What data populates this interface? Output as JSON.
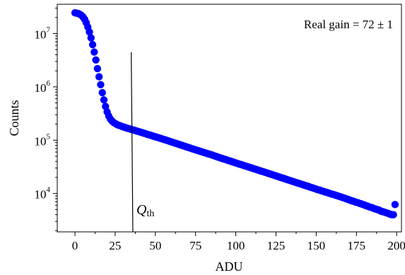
{
  "chart_data": {
    "type": "scatter",
    "xlabel": "ADU",
    "ylabel": "Counts",
    "x_ticks": [
      "0",
      "25",
      "50",
      "75",
      "100",
      "125",
      "150",
      "175",
      "200"
    ],
    "y_tick_mantissa": "10",
    "y_tick_exponents": [
      "4",
      "5",
      "6",
      "7"
    ],
    "xlim": [
      -11,
      203
    ],
    "ylim_log10": [
      3.28,
      7.55
    ],
    "annotation": "Real gain = 72 ± 1",
    "threshold_label": "Q",
    "threshold_label_subscript": "th",
    "threshold_line": {
      "x": [
        35,
        36
      ],
      "log10_counts": [
        6.65,
        3.28
      ]
    },
    "series": [
      {
        "marker_color": "#0000ff",
        "points": [
          [
            0,
            24500000.0
          ],
          [
            1,
            24200000.0
          ],
          [
            2,
            23800000.0
          ],
          [
            3,
            23000000.0
          ],
          [
            4,
            22000000.0
          ],
          [
            5,
            20500000.0
          ],
          [
            6,
            18500000.0
          ],
          [
            7,
            16000000.0
          ],
          [
            8,
            13300000.0
          ],
          [
            9,
            10700000.0
          ],
          [
            10,
            8300000.0
          ],
          [
            11,
            6200000.0
          ],
          [
            12,
            4500000.0
          ],
          [
            13,
            3200000.0
          ],
          [
            14,
            2200000.0
          ],
          [
            15,
            1550000.0
          ],
          [
            16,
            1100000.0
          ],
          [
            17,
            780000.0
          ],
          [
            18,
            570000.0
          ],
          [
            19,
            430000.0
          ],
          [
            20,
            340000.0
          ],
          [
            21,
            285000.0
          ],
          [
            22,
            250000.0
          ],
          [
            23,
            230000.0
          ],
          [
            24,
            215000.0
          ],
          [
            25,
            206000.0
          ],
          [
            26,
            198000.0
          ],
          [
            27,
            192000.0
          ],
          [
            28,
            187000.0
          ],
          [
            29,
            182000.0
          ],
          [
            30,
            178000.0
          ],
          [
            31,
            174000.0
          ],
          [
            32,
            170000.0
          ],
          [
            33,
            166000.0
          ],
          [
            34,
            163000.0
          ],
          [
            35,
            159000.0
          ],
          [
            36,
            156000.0
          ],
          [
            37,
            153000.0
          ],
          [
            38,
            150000.0
          ],
          [
            39,
            147000.0
          ],
          [
            40,
            144000.0
          ],
          [
            41,
            141000.0
          ],
          [
            42,
            138000.0
          ],
          [
            43,
            135000.0
          ],
          [
            44,
            132000.0
          ],
          [
            45,
            129000.0
          ],
          [
            46,
            126000.0
          ],
          [
            47,
            124000.0
          ],
          [
            48,
            121000.0
          ],
          [
            49,
            118000.0
          ],
          [
            50,
            116000.0
          ],
          [
            55,
            104000.0
          ],
          [
            60,
            93000.0
          ],
          [
            65,
            83000.0
          ],
          [
            70,
            74000.0
          ],
          [
            75,
            66000.0
          ],
          [
            80,
            59000.0
          ],
          [
            85,
            53000.0
          ],
          [
            90,
            47000.0
          ],
          [
            95,
            42000.0
          ],
          [
            100,
            37500.0
          ],
          [
            105,
            33500.0
          ],
          [
            110,
            30000.0
          ],
          [
            115,
            26800.0
          ],
          [
            120,
            24000.0
          ],
          [
            125,
            21400.0
          ],
          [
            130,
            19100.0
          ],
          [
            135,
            17000.0
          ],
          [
            140,
            15200.0
          ],
          [
            145,
            13600.0
          ],
          [
            150,
            12100.0
          ],
          [
            151,
            11800.0
          ],
          [
            152,
            11600.0
          ],
          [
            153,
            11300.0
          ],
          [
            154,
            11100.0
          ],
          [
            155,
            10800.0
          ],
          [
            156,
            10600.0
          ],
          [
            157,
            10400.0
          ],
          [
            158,
            10100.0
          ],
          [
            159,
            9900.0
          ],
          [
            160,
            9700.0
          ],
          [
            161,
            9500.0
          ],
          [
            162,
            9300.0
          ],
          [
            163,
            9100.0
          ],
          [
            164,
            8900.0
          ],
          [
            165,
            8700.0
          ],
          [
            166,
            8500.0
          ],
          [
            167,
            8300.0
          ],
          [
            168,
            8100.0
          ],
          [
            169,
            7900.0
          ],
          [
            170,
            7700.0
          ],
          [
            171,
            7500.0
          ],
          [
            172,
            7300.0
          ],
          [
            173,
            7200.0
          ],
          [
            174,
            7000.0
          ],
          [
            175,
            6800.0
          ],
          [
            176,
            6700.0
          ],
          [
            177,
            6500.0
          ],
          [
            178,
            6400.0
          ],
          [
            179,
            6200.0
          ],
          [
            180,
            6100.0
          ],
          [
            181,
            5900.0
          ],
          [
            182,
            5800.0
          ],
          [
            183,
            5600.0
          ],
          [
            184,
            5500.0
          ],
          [
            185,
            5400.0
          ],
          [
            186,
            5200.0
          ],
          [
            187,
            5100.0
          ],
          [
            188,
            5000.0
          ],
          [
            189,
            4900.0
          ],
          [
            190,
            4700.0
          ],
          [
            191,
            4600.0
          ],
          [
            192,
            4500.0
          ],
          [
            193,
            4400.0
          ],
          [
            194,
            4300.0
          ],
          [
            195,
            4200.0
          ],
          [
            196,
            4100.0
          ],
          [
            197,
            4000.0
          ],
          [
            198,
            4000.0
          ],
          [
            199,
            6200.0
          ]
        ]
      },
      {
        "line_color": "#ff0000",
        "x_range": [
          50,
          150
        ],
        "y_range": [
          116000.0,
          12100.0
        ]
      },
      {
        "line_color": "#000000",
        "x_range": [
          50,
          150
        ],
        "y_range": [
          116000.0,
          12100.0
        ]
      }
    ]
  }
}
